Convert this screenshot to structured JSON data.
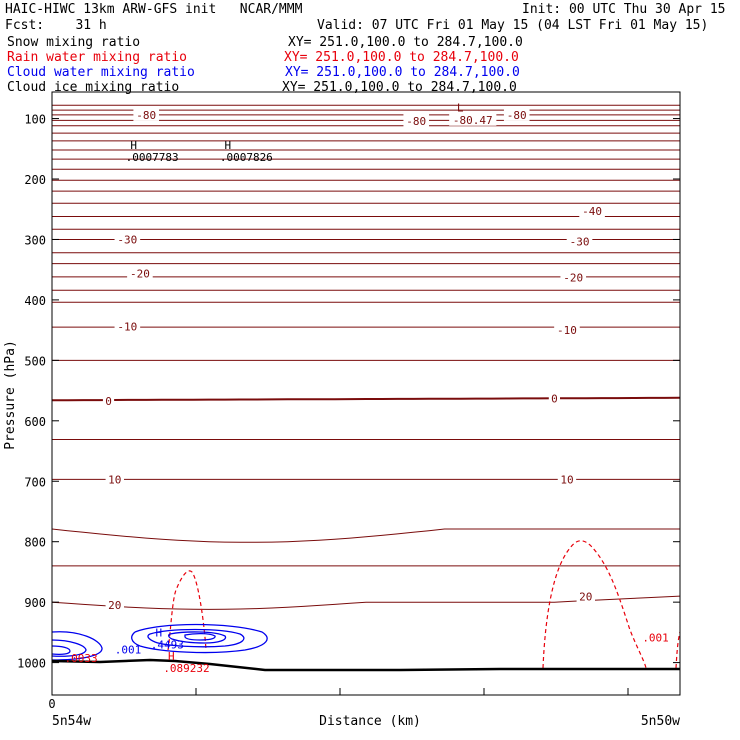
{
  "header": {
    "title": "HAIC-HIWC 13km ARW-GFS init   NCAR/MMM",
    "init": "Init: 00 UTC Thu 30 Apr 15",
    "fcst": "Fcst:    31 h",
    "valid": "Valid: 07 UTC Fri 01 May 15 (04 LST Fri 01 May 15)"
  },
  "fields": [
    {
      "name": "Snow mixing ratio",
      "xy": "XY= 251.0,100.0 to 284.7,100.0",
      "color": "#000000"
    },
    {
      "name": "Rain water mixing ratio",
      "xy": "XY= 251.0,100.0 to 284.7,100.0",
      "color": "#e8000b"
    },
    {
      "name": "Cloud water mixing ratio",
      "xy": "XY= 251.0,100.0 to 284.7,100.0",
      "color": "#0000ee"
    },
    {
      "name": "Cloud ice mixing ratio",
      "xy": "XY= 251.0,100.0 to 284.7,100.0",
      "color": "#000000"
    }
  ],
  "colors": {
    "temperature": "#7a0c0c",
    "rain": "#e8000b",
    "cloud_water": "#0000ee",
    "terrain": "#000000"
  },
  "chart_data": {
    "type": "line",
    "xlabel": "Distance (km)",
    "ylabel": "Pressure (hPa)",
    "ylim": [
      1050,
      70
    ],
    "y_ticks": [
      100,
      200,
      300,
      400,
      500,
      600,
      700,
      800,
      900,
      1000
    ],
    "x_ticks": [
      "0"
    ],
    "x_endpoint_labels": [
      "5n54w",
      "5n50w"
    ],
    "temperature_labels": [
      {
        "text": "-80",
        "x": 0.15,
        "p": 94
      },
      {
        "text": "-80",
        "x": 0.58,
        "p": 104
      },
      {
        "text": "-80.47",
        "x": 0.67,
        "p": 102
      },
      {
        "text": "-80",
        "x": 0.74,
        "p": 94
      },
      {
        "text": "-40",
        "x": 0.86,
        "p": 253
      },
      {
        "text": "-30",
        "x": 0.12,
        "p": 300
      },
      {
        "text": "-30",
        "x": 0.84,
        "p": 303
      },
      {
        "text": "-20",
        "x": 0.14,
        "p": 356
      },
      {
        "text": "-20",
        "x": 0.83,
        "p": 363
      },
      {
        "text": "-10",
        "x": 0.12,
        "p": 444
      },
      {
        "text": "-10",
        "x": 0.82,
        "p": 450
      },
      {
        "text": "0",
        "x": 0.09,
        "p": 567
      },
      {
        "text": "0",
        "x": 0.8,
        "p": 563
      },
      {
        "text": "10",
        "x": 0.1,
        "p": 697
      },
      {
        "text": "10",
        "x": 0.82,
        "p": 697
      },
      {
        "text": "20",
        "x": 0.1,
        "p": 905
      },
      {
        "text": "20",
        "x": 0.85,
        "p": 891
      }
    ],
    "extrema": [
      {
        "kind": "L",
        "value": "",
        "x": 0.65,
        "p": 88,
        "color": "temperature"
      },
      {
        "kind": "H",
        "value": ".0007783",
        "x": 0.13,
        "p": 150,
        "color": "black"
      },
      {
        "kind": "H",
        "value": ".0007826",
        "x": 0.28,
        "p": 150,
        "color": "black"
      },
      {
        "kind": "H",
        "value": ".4493",
        "x": 0.17,
        "p": 957,
        "color": "cloud_water"
      },
      {
        "kind": "H",
        "value": ".089232",
        "x": 0.19,
        "p": 996,
        "color": "rain"
      }
    ],
    "contour_labels": [
      {
        "text": ".001",
        "x": 0.1,
        "p": 985,
        "color": "cloud_water"
      },
      {
        "text": ".001",
        "x": 0.94,
        "p": 965,
        "color": "rain"
      },
      {
        "text": ".0033",
        "x": 0.02,
        "p": 999,
        "color": "rain"
      }
    ]
  }
}
